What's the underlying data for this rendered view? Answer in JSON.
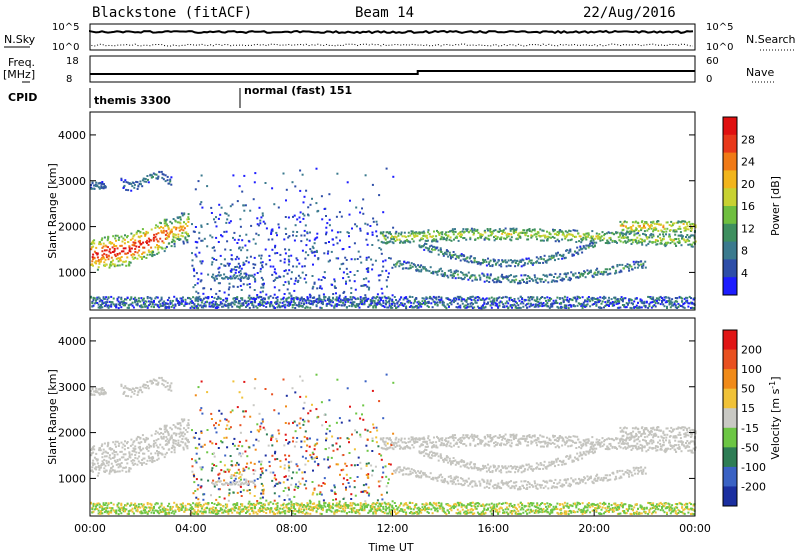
{
  "header": {
    "station": "Blackstone (fitACF)",
    "beam": "Beam 14",
    "date": "22/Aug/2016"
  },
  "summary": {
    "nsky_label": "N.Sky",
    "nsearch_label": "N.Search",
    "noise_ticks": [
      "10^5",
      "10^0"
    ],
    "freq_label_1": "Freq.",
    "freq_label_2": "[MHz]",
    "freq_ticks": [
      "18",
      "8"
    ],
    "nave_label": "Nave",
    "nave_ticks": [
      "60",
      "0"
    ],
    "cpid_label": "CPID",
    "cpid_segments": [
      {
        "name": "themis 3300",
        "start_hour": 0
      },
      {
        "name": "normal (fast) 151",
        "start_hour": 6
      }
    ]
  },
  "chart_data": [
    {
      "type": "heatmap",
      "name": "power-panel",
      "ylabel": "Slant Range [km]",
      "xlabel": "",
      "ylim": [
        180,
        4500
      ],
      "xlim": [
        0,
        24
      ],
      "yticks": [
        "1000",
        "2000",
        "3000",
        "4000"
      ],
      "colorbar": {
        "label": "Power [dB]",
        "ticks": [
          "28",
          "24",
          "20",
          "16",
          "12",
          "8",
          "4"
        ]
      }
    },
    {
      "type": "heatmap",
      "name": "velocity-panel",
      "ylabel": "Slant Range [km]",
      "xlabel": "Time UT",
      "ylim": [
        180,
        4500
      ],
      "xlim": [
        0,
        24
      ],
      "yticks": [
        "1000",
        "2000",
        "3000",
        "4000"
      ],
      "xticks": [
        "00:00",
        "04:00",
        "08:00",
        "12:00",
        "16:00",
        "20:00",
        "00:00"
      ],
      "colorbar": {
        "label": "Velocity [m s",
        "label_sup": "-1",
        "label_end": "]",
        "ticks": [
          "200",
          "100",
          "50",
          "15",
          "-15",
          "-50",
          "-100",
          "-200"
        ]
      }
    }
  ],
  "colors": {
    "power_scale": [
      "#1d1dff",
      "#2e4ea8",
      "#3b7a8e",
      "#3e8f5f",
      "#6fbf3f",
      "#c8d232",
      "#f2b51c",
      "#f07a16",
      "#e8381a",
      "#e01010"
    ],
    "velocity_scale": [
      "#1b2fa0",
      "#3a62c4",
      "#2e7d55",
      "#6cc644",
      "#c9c9c4",
      "#f0c238",
      "#f08a18",
      "#e85020",
      "#e01515"
    ],
    "ground_scatter": "#c4c4bf"
  }
}
